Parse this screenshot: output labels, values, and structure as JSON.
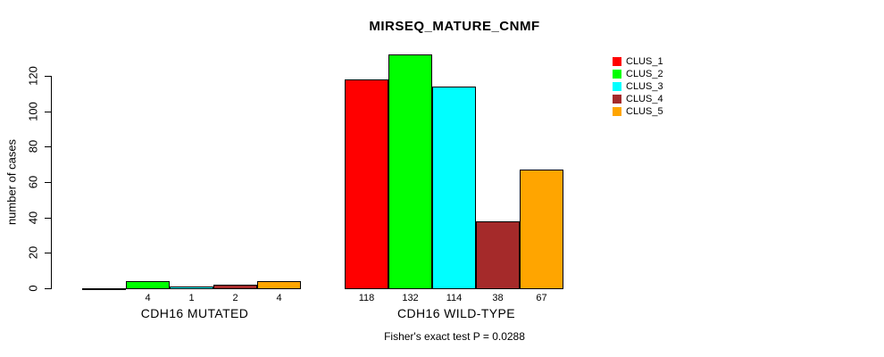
{
  "title": "MIRSEQ_MATURE_CNMF",
  "footnote": "Fisher's exact test P = 0.0288",
  "chart_data": {
    "type": "bar",
    "title": "MIRSEQ_MATURE_CNMF",
    "xlabel": "",
    "ylabel": "number of cases",
    "ylim": [
      0,
      135
    ],
    "yticks": [
      0,
      20,
      40,
      60,
      80,
      100,
      120
    ],
    "grid": false,
    "legend_position": "right",
    "categories": [
      "CDH16 MUTATED",
      "CDH16 WILD-TYPE"
    ],
    "series": [
      {
        "name": "CLUS_1",
        "color": "#ff0000",
        "values": [
          0,
          118
        ]
      },
      {
        "name": "CLUS_2",
        "color": "#00ff00",
        "values": [
          4,
          132
        ]
      },
      {
        "name": "CLUS_3",
        "color": "#00ffff",
        "values": [
          1,
          114
        ]
      },
      {
        "name": "CLUS_4",
        "color": "#a52a2a",
        "values": [
          2,
          38
        ]
      },
      {
        "name": "CLUS_5",
        "color": "#ffa500",
        "values": [
          4,
          67
        ]
      }
    ],
    "bar_labels": [
      [
        "",
        "4",
        "1",
        "2",
        "4"
      ],
      [
        "118",
        "132",
        "114",
        "38",
        "67"
      ]
    ],
    "footnote": "Fisher's exact test P = 0.0288"
  }
}
